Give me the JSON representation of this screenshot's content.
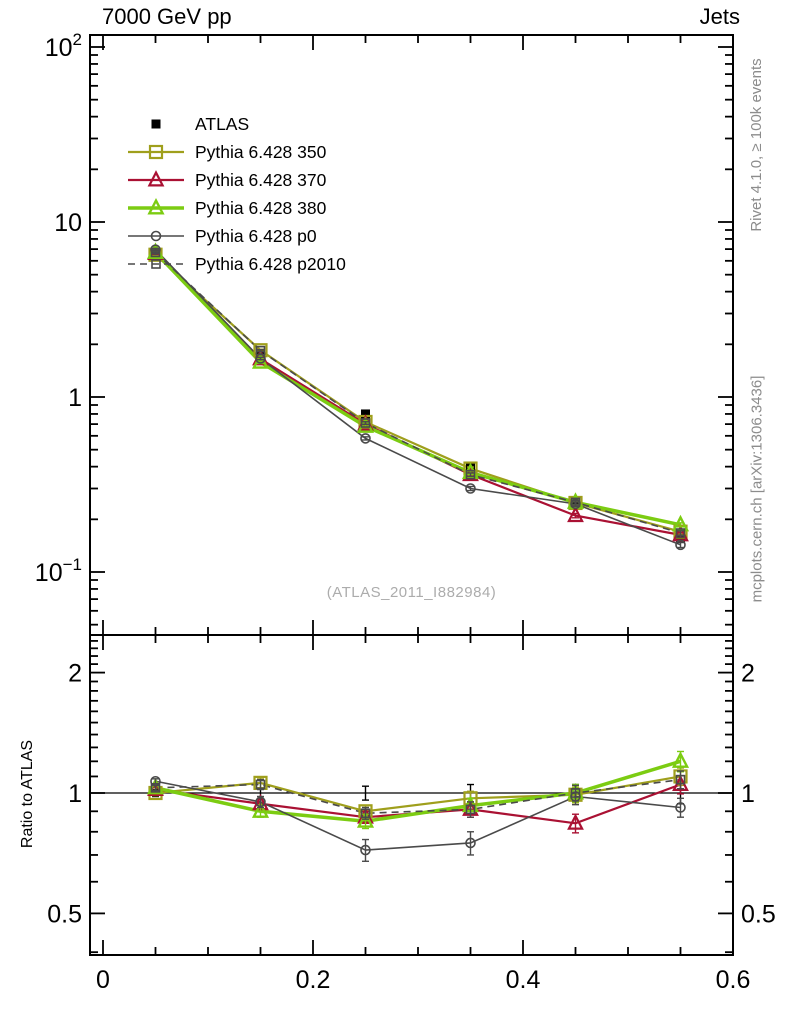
{
  "chart_data": {
    "type": "line",
    "title": "7000 GeV pp",
    "corner_label": "Jets",
    "watermark": "(ATLAS_2011_I882984)",
    "right_label_top": "Rivet 4.1.0, ≥ 100k events",
    "right_label_bottom": "mcplots.cern.ch [arXiv:1306.3436]",
    "ratio_ylabel": "Ratio to ATLAS",
    "xlabel": "",
    "xlim": [
      0,
      0.6
    ],
    "x_ticks": [
      {
        "v": 0,
        "label": "0"
      },
      {
        "v": 0.2,
        "label": "0.2"
      },
      {
        "v": 0.4,
        "label": "0.4"
      },
      {
        "v": 0.6,
        "label": "0.6"
      }
    ],
    "x_minor_step": 0.05,
    "top_panel": {
      "scale": "log",
      "ylim": [
        0.0435,
        117
      ],
      "y_ticks": [
        {
          "v": 100,
          "label": "10",
          "exp": "2"
        },
        {
          "v": 10,
          "label": "10",
          "exp": ""
        },
        {
          "v": 1,
          "label": "1",
          "exp": ""
        },
        {
          "v": 0.1,
          "label": "10",
          "exp": "−1"
        }
      ]
    },
    "ratio_panel": {
      "scale": "log",
      "ylim": [
        0.393,
        2.48
      ],
      "ref_line": 1,
      "y_ticks": [
        {
          "v": 2,
          "label": "2"
        },
        {
          "v": 1,
          "label": "1"
        },
        {
          "v": 0.5,
          "label": "0.5"
        }
      ]
    },
    "x": [
      0.05,
      0.15,
      0.25,
      0.35,
      0.45,
      0.55
    ],
    "series": [
      {
        "name": "ATLAS",
        "color": "#000000",
        "marker": "square-filled",
        "marker_size": 9,
        "line": "none",
        "line_width": 0,
        "ratio_marker": false,
        "values": [
          6.5,
          1.75,
          0.8,
          0.4,
          0.25,
          0.155
        ],
        "y_err": [
          0.12,
          0.04,
          0.025,
          0.013,
          0.009,
          0.007
        ],
        "ratio": [
          1,
          1,
          1,
          1,
          1,
          1
        ],
        "ratio_err": [
          0.02,
          0.03,
          0.04,
          0.05,
          0.05,
          0.06
        ]
      },
      {
        "name": "Pythia 6.428 350",
        "color": "#9f9f1c",
        "marker": "square-open",
        "marker_size": 12,
        "line": "solid",
        "line_width": 2.2,
        "ratio_marker": true,
        "values": [
          6.5,
          1.85,
          0.72,
          0.39,
          0.248,
          0.17
        ],
        "y_err": [
          0.06,
          0.025,
          0.012,
          0.008,
          0.006,
          0.005
        ],
        "ratio": [
          1.0,
          1.06,
          0.9,
          0.97,
          0.99,
          1.1
        ],
        "ratio_err": [
          0.015,
          0.03,
          0.03,
          0.04,
          0.045,
          0.055
        ]
      },
      {
        "name": "Pythia 6.428 370",
        "color": "#aa1133",
        "marker": "triangle-open",
        "marker_size": 12,
        "line": "solid",
        "line_width": 2.2,
        "ratio_marker": true,
        "values": [
          6.6,
          1.65,
          0.7,
          0.36,
          0.21,
          0.163
        ],
        "y_err": [
          0.06,
          0.025,
          0.012,
          0.008,
          0.006,
          0.005
        ],
        "ratio": [
          1.02,
          0.94,
          0.87,
          0.91,
          0.84,
          1.05
        ],
        "ratio_err": [
          0.015,
          0.03,
          0.03,
          0.04,
          0.045,
          0.055
        ]
      },
      {
        "name": "Pythia 6.428 380",
        "color": "#7ccc12",
        "marker": "triangle-open",
        "marker_size": 12,
        "line": "solid",
        "line_width": 3.5,
        "ratio_marker": true,
        "values": [
          6.7,
          1.58,
          0.68,
          0.37,
          0.25,
          0.186
        ],
        "y_err": [
          0.06,
          0.025,
          0.012,
          0.008,
          0.006,
          0.005
        ],
        "ratio": [
          1.03,
          0.9,
          0.85,
          0.93,
          1.0,
          1.2
        ],
        "ratio_err": [
          0.015,
          0.03,
          0.035,
          0.04,
          0.05,
          0.07
        ]
      },
      {
        "name": "Pythia 6.428 p0",
        "color": "#4a4a4a",
        "marker": "circle-open",
        "marker_size": 9,
        "line": "solid",
        "line_width": 1.6,
        "ratio_marker": true,
        "values": [
          6.95,
          1.66,
          0.58,
          0.3,
          0.245,
          0.143
        ],
        "y_err": [
          0.06,
          0.025,
          0.012,
          0.008,
          0.006,
          0.005
        ],
        "ratio": [
          1.07,
          0.95,
          0.72,
          0.75,
          0.98,
          0.92
        ],
        "ratio_err": [
          0.015,
          0.03,
          0.045,
          0.05,
          0.045,
          0.05
        ]
      },
      {
        "name": "Pythia 6.428 p2010",
        "color": "#4a4a4a",
        "marker": "square-open",
        "marker_size": 8,
        "line": "dashed",
        "line_width": 1.6,
        "ratio_marker": true,
        "values": [
          6.7,
          1.84,
          0.71,
          0.36,
          0.25,
          0.167
        ],
        "y_err": [
          0.06,
          0.025,
          0.012,
          0.008,
          0.006,
          0.005
        ],
        "ratio": [
          1.03,
          1.05,
          0.89,
          0.91,
          1.0,
          1.08
        ],
        "ratio_err": [
          0.015,
          0.03,
          0.03,
          0.04,
          0.045,
          0.055
        ]
      }
    ]
  }
}
